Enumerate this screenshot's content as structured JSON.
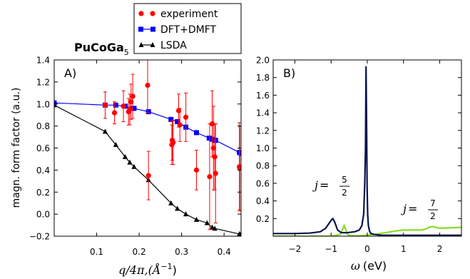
{
  "title": "PuCoGa",
  "title_sub": "5",
  "legend": {
    "experiment": "experiment",
    "dmft": "DFT+DMFT",
    "lsda": "LSDA"
  },
  "colors": {
    "experiment": "#ff0000",
    "dmft": "#0000ff",
    "lsda": "#000000",
    "j52": "#0a1450",
    "j72": "#88dd22"
  },
  "chart_data": [
    {
      "type": "scatter",
      "panel_label": "A)",
      "ylabel": "magn. form factor (a.u.)",
      "xlabel_main": "q/4π,(Å",
      "xlabel_exp": "−1",
      "xlabel_close": ")",
      "xlim": [
        0.0,
        0.44
      ],
      "ylim": [
        -0.2,
        1.4
      ],
      "xticks": [
        "0.1",
        "0.2",
        "0.3",
        "0.4"
      ],
      "yticks": [
        "−0.2",
        "0.0",
        "0.2",
        "0.4",
        "0.6",
        "0.8",
        "1.0",
        "1.2",
        "1.4"
      ],
      "grid": false,
      "series": [
        {
          "name": "experiment",
          "x": [
            0.12,
            0.142,
            0.163,
            0.175,
            0.178,
            0.181,
            0.185,
            0.22,
            0.222,
            0.277,
            0.278,
            0.28,
            0.293,
            0.296,
            0.31,
            0.335,
            0.366,
            0.372,
            0.375,
            0.378,
            0.38,
            0.436,
            0.437
          ],
          "y": [
            0.99,
            0.92,
            0.98,
            0.93,
            0.95,
            1.02,
            1.07,
            1.17,
            0.35,
            0.63,
            0.67,
            0.65,
            0.94,
            0.81,
            0.88,
            0.4,
            0.34,
            0.82,
            0.6,
            0.52,
            0.37,
            0.43,
            0.42
          ],
          "err": [
            0.12,
            0.1,
            0.14,
            0.12,
            0.14,
            0.16,
            0.2,
            0.25,
            0.22,
            0.18,
            0.18,
            0.2,
            0.15,
            0.15,
            0.22,
            0.18,
            0.48,
            0.3,
            0.38,
            0.3,
            0.45,
            0.4,
            0.38
          ]
        },
        {
          "name": "DFT+DMFT",
          "x": [
            0.0,
            0.12,
            0.145,
            0.167,
            0.185,
            0.188,
            0.222,
            0.275,
            0.29,
            0.31,
            0.335,
            0.365,
            0.372,
            0.378,
            0.38,
            0.436,
            0.44
          ],
          "y": [
            1.01,
            0.99,
            0.99,
            0.98,
            0.96,
            0.96,
            0.93,
            0.86,
            0.84,
            0.79,
            0.74,
            0.69,
            0.68,
            0.67,
            0.67,
            0.56,
            0.55
          ]
        },
        {
          "name": "LSDA",
          "x": [
            0.0,
            0.12,
            0.145,
            0.167,
            0.178,
            0.188,
            0.222,
            0.275,
            0.29,
            0.31,
            0.335,
            0.36,
            0.372,
            0.378,
            0.436,
            0.44
          ],
          "y": [
            0.99,
            0.75,
            0.63,
            0.52,
            0.47,
            0.43,
            0.31,
            0.1,
            0.05,
            0.0,
            -0.05,
            -0.08,
            -0.12,
            -0.13,
            -0.18,
            -0.18
          ]
        }
      ]
    },
    {
      "type": "line",
      "panel_label": "B)",
      "xlabel_sym": "ω",
      "xlabel_unit": "(eV)",
      "xlim": [
        -2.6,
        2.6
      ],
      "ylim": [
        0.0,
        2.0
      ],
      "xticks": [
        "−2",
        "−1",
        "0",
        "1",
        "2"
      ],
      "yticks": [
        "0.2",
        "0.4",
        "0.6",
        "0.8",
        "1.0",
        "1.2",
        "1.4",
        "1.6",
        "1.8",
        "2.0"
      ],
      "grid": false,
      "annotations": {
        "j52_prefix": "j",
        "j52_eq": "=",
        "j52_num": "5",
        "j52_den": "2",
        "j72_prefix": "j",
        "j72_eq": "=",
        "j72_num": "7",
        "j72_den": "2"
      },
      "series": [
        {
          "name": "j=5/2",
          "x": [
            -2.6,
            -2.0,
            -1.6,
            -1.3,
            -1.15,
            -1.05,
            -0.98,
            -0.95,
            -0.9,
            -0.82,
            -0.72,
            -0.55,
            -0.35,
            -0.22,
            -0.15,
            -0.1,
            -0.07,
            -0.05,
            -0.035,
            -0.02,
            -0.005,
            0.01,
            0.03,
            0.06,
            0.1,
            0.2,
            0.4,
            0.8,
            1.2,
            2.0,
            2.6
          ],
          "y": [
            0.03,
            0.03,
            0.035,
            0.05,
            0.09,
            0.15,
            0.19,
            0.2,
            0.16,
            0.07,
            0.04,
            0.04,
            0.05,
            0.07,
            0.12,
            0.25,
            0.6,
            1.0,
            1.92,
            1.3,
            0.55,
            0.25,
            0.12,
            0.06,
            0.03,
            0.02,
            0.01,
            0.01,
            0.01,
            0.01,
            0.01
          ]
        },
        {
          "name": "j=7/2",
          "x": [
            -2.6,
            -1.5,
            -1.0,
            -0.75,
            -0.68,
            -0.64,
            -0.6,
            -0.55,
            -0.45,
            -0.2,
            0.2,
            0.5,
            0.8,
            1.0,
            1.5,
            1.6,
            1.7,
            1.8,
            1.9,
            2.0,
            2.6
          ],
          "y": [
            0.0,
            0.0,
            0.0,
            0.02,
            0.08,
            0.12,
            0.08,
            0.02,
            0.005,
            0.005,
            0.02,
            0.04,
            0.06,
            0.07,
            0.07,
            0.08,
            0.1,
            0.11,
            0.1,
            0.09,
            0.1
          ]
        }
      ]
    }
  ]
}
